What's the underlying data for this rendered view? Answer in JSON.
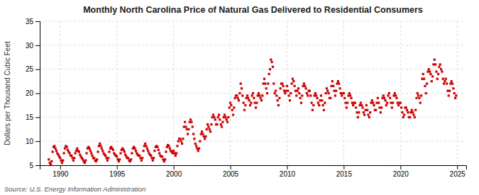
{
  "chart_data": {
    "type": "scatter",
    "title": "Monthly North Carolina Price of Natural Gas Delivered to Residential Consumers",
    "ylabel": "Dollars per Thousand Cubic Feet",
    "annotations": [
      "Source: U.S. Energy Information Administration"
    ],
    "color": "#cc0000",
    "marker": "square",
    "grid": true,
    "xlim": [
      1988.2,
      2025.8
    ],
    "ylim": [
      5,
      35
    ],
    "xticks": [
      1990,
      1995,
      2000,
      2005,
      2010,
      2015,
      2020,
      2025
    ],
    "yticks": [
      5,
      10,
      15,
      20,
      25,
      30,
      35
    ],
    "x": [
      1989.0,
      1989.083,
      1989.167,
      1989.25,
      1989.333,
      1989.417,
      1989.5,
      1989.583,
      1989.667,
      1989.75,
      1989.833,
      1989.917,
      1990.0,
      1990.083,
      1990.167,
      1990.25,
      1990.333,
      1990.417,
      1990.5,
      1990.583,
      1990.667,
      1990.75,
      1990.833,
      1990.917,
      1991.0,
      1991.083,
      1991.167,
      1991.25,
      1991.333,
      1991.417,
      1991.5,
      1991.583,
      1991.667,
      1991.75,
      1991.833,
      1991.917,
      1992.0,
      1992.083,
      1992.167,
      1992.25,
      1992.333,
      1992.417,
      1992.5,
      1992.583,
      1992.667,
      1992.75,
      1992.833,
      1992.917,
      1993.0,
      1993.083,
      1993.167,
      1993.25,
      1993.333,
      1993.417,
      1993.5,
      1993.583,
      1993.667,
      1993.75,
      1993.833,
      1993.917,
      1994.0,
      1994.083,
      1994.167,
      1994.25,
      1994.333,
      1994.417,
      1994.5,
      1994.583,
      1994.667,
      1994.75,
      1994.833,
      1994.917,
      1995.0,
      1995.083,
      1995.167,
      1995.25,
      1995.333,
      1995.417,
      1995.5,
      1995.583,
      1995.667,
      1995.75,
      1995.833,
      1995.917,
      1996.0,
      1996.083,
      1996.167,
      1996.25,
      1996.333,
      1996.417,
      1996.5,
      1996.583,
      1996.667,
      1996.75,
      1996.833,
      1996.917,
      1997.0,
      1997.083,
      1997.167,
      1997.25,
      1997.333,
      1997.417,
      1997.5,
      1997.583,
      1997.667,
      1997.75,
      1997.833,
      1997.917,
      1998.0,
      1998.083,
      1998.167,
      1998.25,
      1998.333,
      1998.417,
      1998.5,
      1998.583,
      1998.667,
      1998.75,
      1998.833,
      1998.917,
      1999.0,
      1999.083,
      1999.167,
      1999.25,
      1999.333,
      1999.417,
      1999.5,
      1999.583,
      1999.667,
      1999.75,
      1999.833,
      1999.917,
      2000.0,
      2000.083,
      2000.167,
      2000.25,
      2000.333,
      2000.417,
      2000.5,
      2000.583,
      2000.667,
      2000.75,
      2000.833,
      2000.917,
      2001.0,
      2001.083,
      2001.167,
      2001.25,
      2001.333,
      2001.417,
      2001.5,
      2001.583,
      2001.667,
      2001.75,
      2001.833,
      2001.917,
      2002.0,
      2002.083,
      2002.167,
      2002.25,
      2002.333,
      2002.417,
      2002.5,
      2002.583,
      2002.667,
      2002.75,
      2002.833,
      2002.917,
      2003.0,
      2003.083,
      2003.167,
      2003.25,
      2003.333,
      2003.417,
      2003.5,
      2003.583,
      2003.667,
      2003.75,
      2003.833,
      2003.917,
      2004.0,
      2004.083,
      2004.167,
      2004.25,
      2004.333,
      2004.417,
      2004.5,
      2004.583,
      2004.667,
      2004.75,
      2004.833,
      2004.917,
      2005.0,
      2005.083,
      2005.167,
      2005.25,
      2005.333,
      2005.417,
      2005.5,
      2005.583,
      2005.667,
      2005.75,
      2005.833,
      2005.917,
      2006.0,
      2006.083,
      2006.167,
      2006.25,
      2006.333,
      2006.417,
      2006.5,
      2006.583,
      2006.667,
      2006.75,
      2006.833,
      2006.917,
      2007.0,
      2007.083,
      2007.167,
      2007.25,
      2007.333,
      2007.417,
      2007.5,
      2007.583,
      2007.667,
      2007.75,
      2007.833,
      2007.917,
      2008.0,
      2008.083,
      2008.167,
      2008.25,
      2008.333,
      2008.417,
      2008.5,
      2008.583,
      2008.667,
      2008.75,
      2008.833,
      2008.917,
      2009.0,
      2009.083,
      2009.167,
      2009.25,
      2009.333,
      2009.417,
      2009.5,
      2009.583,
      2009.667,
      2009.75,
      2009.833,
      2009.917,
      2010.0,
      2010.083,
      2010.167,
      2010.25,
      2010.333,
      2010.417,
      2010.5,
      2010.583,
      2010.667,
      2010.75,
      2010.833,
      2010.917,
      2011.0,
      2011.083,
      2011.167,
      2011.25,
      2011.333,
      2011.417,
      2011.5,
      2011.583,
      2011.667,
      2011.75,
      2011.833,
      2011.917,
      2012.0,
      2012.083,
      2012.167,
      2012.25,
      2012.333,
      2012.417,
      2012.5,
      2012.583,
      2012.667,
      2012.75,
      2012.833,
      2012.917,
      2013.0,
      2013.083,
      2013.167,
      2013.25,
      2013.333,
      2013.417,
      2013.5,
      2013.583,
      2013.667,
      2013.75,
      2013.833,
      2013.917,
      2014.0,
      2014.083,
      2014.167,
      2014.25,
      2014.333,
      2014.417,
      2014.5,
      2014.583,
      2014.667,
      2014.75,
      2014.833,
      2014.917,
      2015.0,
      2015.083,
      2015.167,
      2015.25,
      2015.333,
      2015.417,
      2015.5,
      2015.583,
      2015.667,
      2015.75,
      2015.833,
      2015.917,
      2016.0,
      2016.083,
      2016.167,
      2016.25,
      2016.333,
      2016.417,
      2016.5,
      2016.583,
      2016.667,
      2016.75,
      2016.833,
      2016.917,
      2017.0,
      2017.083,
      2017.167,
      2017.25,
      2017.333,
      2017.417,
      2017.5,
      2017.583,
      2017.667,
      2017.75,
      2017.833,
      2017.917,
      2018.0,
      2018.083,
      2018.167,
      2018.25,
      2018.333,
      2018.417,
      2018.5,
      2018.583,
      2018.667,
      2018.75,
      2018.833,
      2018.917,
      2019.0,
      2019.083,
      2019.167,
      2019.25,
      2019.333,
      2019.417,
      2019.5,
      2019.583,
      2019.667,
      2019.75,
      2019.833,
      2019.917,
      2020.0,
      2020.083,
      2020.167,
      2020.25,
      2020.333,
      2020.417,
      2020.5,
      2020.583,
      2020.667,
      2020.75,
      2020.833,
      2020.917,
      2021.0,
      2021.083,
      2021.167,
      2021.25,
      2021.333,
      2021.417,
      2021.5,
      2021.583,
      2021.667,
      2021.75,
      2021.833,
      2021.917,
      2022.0,
      2022.083,
      2022.167,
      2022.25,
      2022.333,
      2022.417,
      2022.5,
      2022.583,
      2022.667,
      2022.75,
      2022.833,
      2022.917,
      2023.0,
      2023.083,
      2023.167,
      2023.25,
      2023.333,
      2023.417,
      2023.5,
      2023.583,
      2023.667,
      2023.75,
      2023.833,
      2023.917,
      2024.0,
      2024.083,
      2024.167,
      2024.25,
      2024.333,
      2024.417,
      2024.5,
      2024.583,
      2024.667,
      2024.75,
      2024.833,
      2024.917
    ],
    "values": [
      6.2,
      5.5,
      5.2,
      5.8,
      7.8,
      8.8,
      9.0,
      8.5,
      8.0,
      7.5,
      7.2,
      6.8,
      6.5,
      6.0,
      5.5,
      6.0,
      7.5,
      8.5,
      9.0,
      8.8,
      8.2,
      7.8,
      7.5,
      7.0,
      7.0,
      6.5,
      6.0,
      6.5,
      7.5,
      8.0,
      8.5,
      8.0,
      7.8,
      7.2,
      6.8,
      6.5,
      6.2,
      5.8,
      5.5,
      6.0,
      7.5,
      8.5,
      8.8,
      8.5,
      8.0,
      7.5,
      7.0,
      6.5,
      6.5,
      6.0,
      5.8,
      6.2,
      7.8,
      9.0,
      9.5,
      9.0,
      8.5,
      8.0,
      7.5,
      7.2,
      7.0,
      6.5,
      6.0,
      6.5,
      7.8,
      8.5,
      8.8,
      8.5,
      8.2,
      7.5,
      7.2,
      7.0,
      6.8,
      6.2,
      5.8,
      6.2,
      7.5,
      8.2,
      8.5,
      8.2,
      7.8,
      7.2,
      6.8,
      6.5,
      6.5,
      6.0,
      5.8,
      6.2,
      7.5,
      8.5,
      8.8,
      8.5,
      8.0,
      7.5,
      7.2,
      7.0,
      7.0,
      6.5,
      6.0,
      6.5,
      8.0,
      9.0,
      9.5,
      9.0,
      8.5,
      8.0,
      7.5,
      7.2,
      7.0,
      6.5,
      6.0,
      6.5,
      8.0,
      8.8,
      9.0,
      8.8,
      8.2,
      7.5,
      7.0,
      6.8,
      6.8,
      6.2,
      5.8,
      6.2,
      7.8,
      8.8,
      9.2,
      9.0,
      8.5,
      8.0,
      7.8,
      7.5,
      8.0,
      7.5,
      7.0,
      7.5,
      9.0,
      10.0,
      10.5,
      10.5,
      10.0,
      9.5,
      10.5,
      13.0,
      14.0,
      13.0,
      12.5,
      11.5,
      12.5,
      14.0,
      14.5,
      14.0,
      13.0,
      11.5,
      10.5,
      9.5,
      9.0,
      8.5,
      8.0,
      8.5,
      10.0,
      11.5,
      12.0,
      11.5,
      11.0,
      10.5,
      11.0,
      12.5,
      13.5,
      13.0,
      12.5,
      12.0,
      13.5,
      15.0,
      15.5,
      15.0,
      14.5,
      13.5,
      13.5,
      15.0,
      15.5,
      14.5,
      13.5,
      13.0,
      14.0,
      15.0,
      15.5,
      15.0,
      14.5,
      14.0,
      15.0,
      17.0,
      18.0,
      17.5,
      16.5,
      15.5,
      17.0,
      19.0,
      19.5,
      19.5,
      19.0,
      18.5,
      20.0,
      22.0,
      21.0,
      19.5,
      18.0,
      16.5,
      17.5,
      19.0,
      19.5,
      19.0,
      18.5,
      17.5,
      18.0,
      19.5,
      20.0,
      19.0,
      18.0,
      17.0,
      18.0,
      19.5,
      20.0,
      19.5,
      19.0,
      18.5,
      19.5,
      22.0,
      23.0,
      22.0,
      21.0,
      20.0,
      22.0,
      24.0,
      25.0,
      27.0,
      26.5,
      25.5,
      22.0,
      20.0,
      20.5,
      19.5,
      18.5,
      17.5,
      19.0,
      21.0,
      22.0,
      22.0,
      21.5,
      20.5,
      20.0,
      20.5,
      21.5,
      20.5,
      19.5,
      18.5,
      20.0,
      22.0,
      23.0,
      22.5,
      21.5,
      20.5,
      19.5,
      20.5,
      21.0,
      20.0,
      19.0,
      18.0,
      19.5,
      21.5,
      22.0,
      21.5,
      21.0,
      20.0,
      19.5,
      20.5,
      20.5,
      19.5,
      18.0,
      16.5,
      17.5,
      19.5,
      20.0,
      19.5,
      19.0,
      18.0,
      17.5,
      18.5,
      19.5,
      18.5,
      17.5,
      16.5,
      18.0,
      20.0,
      21.0,
      20.5,
      20.0,
      19.0,
      19.0,
      21.5,
      22.5,
      21.5,
      20.5,
      19.5,
      20.5,
      22.0,
      22.5,
      22.0,
      21.0,
      20.0,
      19.5,
      20.0,
      20.0,
      19.0,
      18.0,
      17.0,
      18.0,
      19.5,
      20.0,
      19.5,
      19.0,
      18.0,
      17.5,
      18.0,
      18.0,
      17.0,
      16.0,
      15.0,
      16.0,
      17.5,
      18.0,
      17.5,
      17.0,
      16.0,
      15.5,
      16.5,
      17.5,
      16.5,
      15.5,
      15.0,
      16.0,
      18.0,
      18.5,
      18.0,
      17.5,
      16.5,
      16.5,
      18.0,
      19.0,
      18.0,
      17.0,
      16.0,
      17.0,
      19.0,
      19.5,
      19.0,
      18.5,
      17.5,
      18.0,
      19.5,
      20.0,
      19.0,
      18.0,
      17.0,
      18.0,
      19.5,
      20.0,
      19.5,
      19.0,
      18.0,
      17.5,
      18.0,
      18.0,
      17.0,
      16.0,
      15.0,
      15.5,
      17.0,
      17.0,
      16.5,
      16.0,
      15.0,
      15.0,
      16.0,
      16.5,
      16.0,
      15.5,
      15.0,
      16.5,
      19.0,
      20.0,
      19.5,
      19.0,
      18.0,
      19.5,
      23.0,
      24.0,
      23.0,
      21.5,
      20.0,
      22.0,
      24.5,
      25.0,
      24.5,
      24.0,
      22.5,
      23.5,
      26.0,
      27.0,
      26.0,
      24.5,
      23.0,
      24.0,
      25.5,
      26.0,
      25.0,
      24.5,
      23.0,
      22.0,
      22.5,
      23.0,
      22.0,
      20.5,
      19.5,
      20.5,
      22.0,
      22.5,
      22.0,
      21.0,
      20.0,
      19.0,
      19.5
    ]
  }
}
